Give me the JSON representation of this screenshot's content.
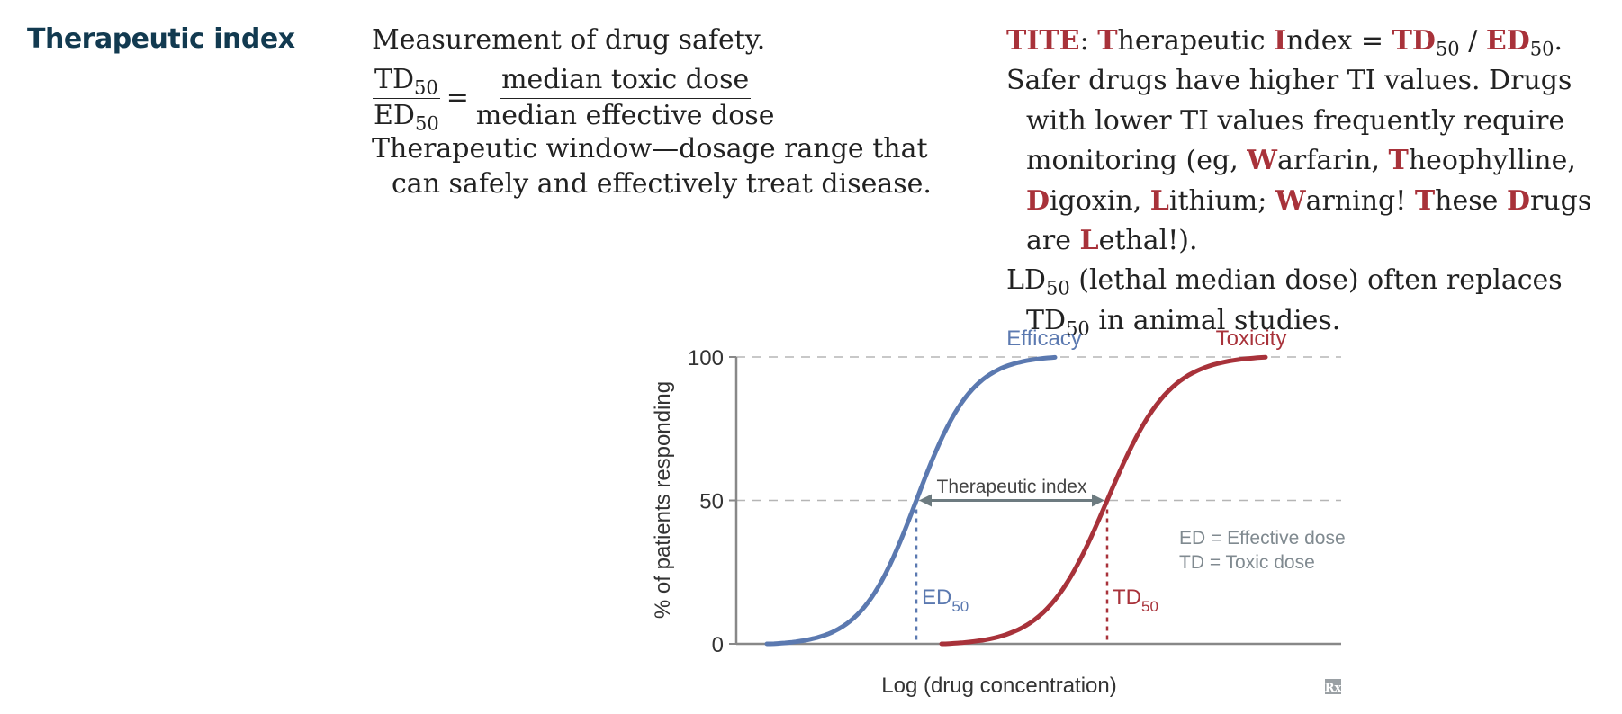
{
  "heading": "Therapeutic index",
  "middle": {
    "intro": "Measurement of drug safety.",
    "formula": {
      "td": "TD",
      "td_sub": "50",
      "ed": "ED",
      "ed_sub": "50",
      "equals": "=",
      "numerator": "median toxic dose",
      "denominator": "median effective dose"
    },
    "window": "Therapeutic window—dosage range that can safely and effectively treat disease."
  },
  "right": {
    "tite": {
      "acronym": "TITE",
      "colon": ": ",
      "t1": "T",
      "herapeutic": "herapeutic ",
      "i1": "I",
      "ndex": "ndex = ",
      "td": "TD",
      "td_sub": "50",
      "slash": " / ",
      "ed": "ED",
      "ed_sub": "50",
      "end": "."
    },
    "safer": {
      "text": "Safer drugs have higher TI values. Drugs with lower TI values frequently require monitoring (eg, ",
      "w": "W",
      "arfarin": "arfarin, ",
      "t": "T",
      "heophylline": "heophylline, ",
      "d": "D",
      "igoxin": "igoxin, ",
      "l": "L",
      "ithium": "ithium; ",
      "w2": "W",
      "arning": "arning! ",
      "t2": "T",
      "hese": "hese ",
      "d2": "D",
      "rugs": "rugs are ",
      "l2": "L",
      "ethal": "ethal!)."
    },
    "ld": {
      "ld": "LD",
      "ld_sub": "50",
      "text": " (lethal median dose) often replaces TD",
      "td_sub": "50",
      "end": " in animal studies."
    }
  },
  "chart_data": {
    "type": "line",
    "ylabel": "% of patients responding",
    "xlabel": "Log (drug concentration)",
    "ylim": [
      0,
      100
    ],
    "yticks": [
      "0",
      "50",
      "100"
    ],
    "grid_dashed_at": [
      50,
      100
    ],
    "series": [
      {
        "name": "Efficacy",
        "color": "#5b79b0",
        "midpoint_label": "ED",
        "midpoint_sub": "50"
      },
      {
        "name": "Toxicity",
        "color": "#a8323a",
        "midpoint_label": "TD",
        "midpoint_sub": "50"
      }
    ],
    "annotation": "Therapeutic index",
    "legend_lines": [
      "ED = Effective dose",
      "TD = Toxic dose"
    ],
    "logo": "Rx"
  }
}
